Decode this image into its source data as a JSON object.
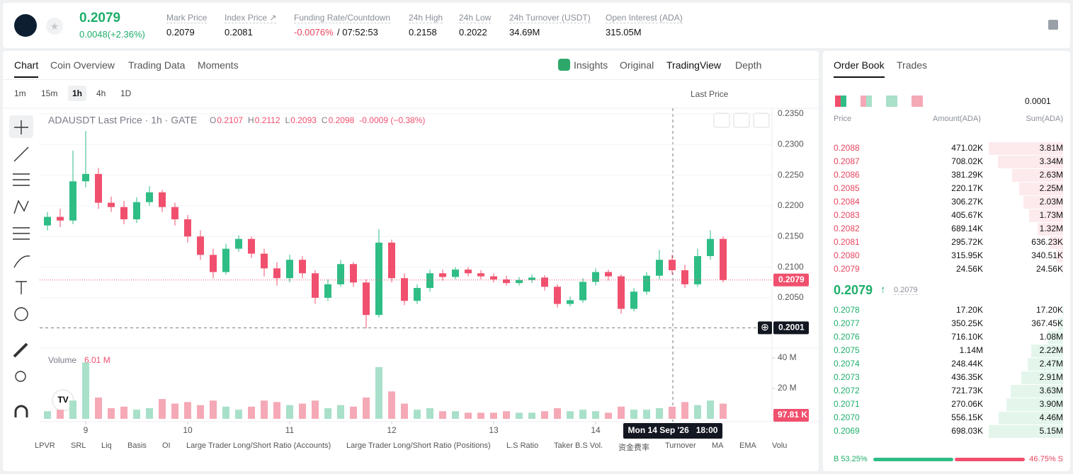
{
  "header": {
    "price": "0.2079",
    "change": "0.0048(+2.36%)",
    "stats": [
      {
        "label": "Mark Price",
        "value": "0.2079"
      },
      {
        "label": "Index Price ↗",
        "value": "0.2081"
      },
      {
        "label": "Funding Rate/Countdown",
        "value": "-0.0076%",
        "value2": "/ 07:52:53"
      },
      {
        "label": "24h High",
        "value": "0.2158"
      },
      {
        "label": "24h Low",
        "value": "0.2022"
      },
      {
        "label": "24h Turnover (USDT)",
        "value": "34.69M"
      },
      {
        "label": "Open Interest (ADA)",
        "value": "315.05M"
      }
    ]
  },
  "tabs": {
    "left": [
      "Chart",
      "Coin Overview",
      "Trading Data",
      "Moments"
    ],
    "right": [
      "Insights",
      "Original",
      "TradingView",
      "Depth"
    ]
  },
  "toolbar": {
    "intervals": [
      "1m",
      "15m",
      "1h",
      "4h",
      "1D"
    ],
    "price_type": "Last Price"
  },
  "chart": {
    "type": "candlestick",
    "legend": {
      "title": "ADAUSDT Last Price · 1h · GATE",
      "ohlc": [
        {
          "key": "O",
          "value": "0.2107"
        },
        {
          "key": "H",
          "value": "0.2112"
        },
        {
          "key": "L",
          "value": "0.2093"
        },
        {
          "key": "C",
          "value": "0.2098"
        }
      ],
      "change": "-0.0009 (−0.38%)"
    },
    "colors": {
      "up": "#2ebd85",
      "down": "#f0506e",
      "vol_up": "#a8e0c9",
      "vol_down": "#f5a9b6"
    },
    "ylim": [
      0.1968,
      0.2358
    ],
    "yticks": [
      {
        "value": 0.205,
        "label": "0.2050"
      },
      {
        "value": 0.21,
        "label": "0.2100"
      },
      {
        "value": 0.215,
        "label": "0.2150"
      },
      {
        "value": 0.22,
        "label": "0.2200"
      },
      {
        "value": 0.225,
        "label": "0.2250"
      },
      {
        "value": 0.23,
        "label": "0.2300"
      },
      {
        "value": 0.235,
        "label": "0.2350"
      }
    ],
    "last_price": {
      "value": 0.2079,
      "label": "0.2079"
    },
    "cross_price": {
      "value": 0.2001,
      "label": "0.2001"
    },
    "xticks": [
      {
        "value": 3,
        "label": "9"
      },
      {
        "value": 11,
        "label": "10"
      },
      {
        "value": 19,
        "label": "11"
      },
      {
        "value": 27,
        "label": "12"
      },
      {
        "value": 35,
        "label": "13"
      },
      {
        "value": 43,
        "label": "14"
      }
    ],
    "crosshair_label": "Mon 14 Sep '26   18:00",
    "volume": {
      "title": "Volume",
      "current": "6.01 M",
      "current_box": "97.81 K",
      "ylim": [
        0,
        46.5
      ],
      "yticks": [
        {
          "value": 20,
          "label": "20 M"
        },
        {
          "value": 40,
          "label": "40 M"
        }
      ]
    },
    "candles": [
      {
        "o": 0.2168,
        "c": 0.2182,
        "h": 0.219,
        "l": 0.216,
        "v": 5
      },
      {
        "o": 0.2182,
        "c": 0.2176,
        "h": 0.2195,
        "l": 0.2165,
        "v": 6
      },
      {
        "o": 0.2176,
        "c": 0.224,
        "h": 0.229,
        "l": 0.217,
        "v": 12
      },
      {
        "o": 0.224,
        "c": 0.2252,
        "h": 0.2322,
        "l": 0.223,
        "v": 37
      },
      {
        "o": 0.2252,
        "c": 0.2205,
        "h": 0.2262,
        "l": 0.2195,
        "v": 14
      },
      {
        "o": 0.2205,
        "c": 0.2198,
        "h": 0.2215,
        "l": 0.219,
        "v": 7
      },
      {
        "o": 0.2198,
        "c": 0.2178,
        "h": 0.2208,
        "l": 0.217,
        "v": 8
      },
      {
        "o": 0.2178,
        "c": 0.2206,
        "h": 0.2214,
        "l": 0.2172,
        "v": 6
      },
      {
        "o": 0.2206,
        "c": 0.2222,
        "h": 0.2232,
        "l": 0.22,
        "v": 7
      },
      {
        "o": 0.2222,
        "c": 0.2198,
        "h": 0.2226,
        "l": 0.219,
        "v": 13
      },
      {
        "o": 0.2198,
        "c": 0.2178,
        "h": 0.2205,
        "l": 0.2168,
        "v": 10
      },
      {
        "o": 0.2178,
        "c": 0.215,
        "h": 0.2185,
        "l": 0.214,
        "v": 11
      },
      {
        "o": 0.215,
        "c": 0.212,
        "h": 0.216,
        "l": 0.2112,
        "v": 9
      },
      {
        "o": 0.212,
        "c": 0.2092,
        "h": 0.213,
        "l": 0.2082,
        "v": 12
      },
      {
        "o": 0.2092,
        "c": 0.213,
        "h": 0.2138,
        "l": 0.2088,
        "v": 8
      },
      {
        "o": 0.213,
        "c": 0.2146,
        "h": 0.2152,
        "l": 0.2125,
        "v": 6
      },
      {
        "o": 0.2146,
        "c": 0.2122,
        "h": 0.215,
        "l": 0.2115,
        "v": 8
      },
      {
        "o": 0.2122,
        "c": 0.2098,
        "h": 0.213,
        "l": 0.2085,
        "v": 12
      },
      {
        "o": 0.2098,
        "c": 0.2082,
        "h": 0.2108,
        "l": 0.207,
        "v": 11
      },
      {
        "o": 0.2082,
        "c": 0.2112,
        "h": 0.212,
        "l": 0.2075,
        "v": 9
      },
      {
        "o": 0.2112,
        "c": 0.209,
        "h": 0.2118,
        "l": 0.2082,
        "v": 10
      },
      {
        "o": 0.209,
        "c": 0.205,
        "h": 0.2095,
        "l": 0.204,
        "v": 12
      },
      {
        "o": 0.205,
        "c": 0.2072,
        "h": 0.208,
        "l": 0.2045,
        "v": 7
      },
      {
        "o": 0.2072,
        "c": 0.2105,
        "h": 0.2112,
        "l": 0.2068,
        "v": 9
      },
      {
        "o": 0.2105,
        "c": 0.2075,
        "h": 0.2108,
        "l": 0.2068,
        "v": 8
      },
      {
        "o": 0.2075,
        "c": 0.2022,
        "h": 0.208,
        "l": 0.2,
        "v": 14
      },
      {
        "o": 0.2022,
        "c": 0.214,
        "h": 0.2162,
        "l": 0.2018,
        "v": 34
      },
      {
        "o": 0.214,
        "c": 0.2082,
        "h": 0.2145,
        "l": 0.2075,
        "v": 18
      },
      {
        "o": 0.2082,
        "c": 0.2045,
        "h": 0.209,
        "l": 0.2038,
        "v": 10
      },
      {
        "o": 0.2045,
        "c": 0.2066,
        "h": 0.2072,
        "l": 0.204,
        "v": 6
      },
      {
        "o": 0.2066,
        "c": 0.209,
        "h": 0.2096,
        "l": 0.206,
        "v": 7
      },
      {
        "o": 0.209,
        "c": 0.2084,
        "h": 0.2096,
        "l": 0.2078,
        "v": 5
      },
      {
        "o": 0.2084,
        "c": 0.2096,
        "h": 0.21,
        "l": 0.208,
        "v": 5
      },
      {
        "o": 0.2096,
        "c": 0.209,
        "h": 0.21,
        "l": 0.2085,
        "v": 4
      },
      {
        "o": 0.209,
        "c": 0.2085,
        "h": 0.2095,
        "l": 0.208,
        "v": 4
      },
      {
        "o": 0.2085,
        "c": 0.208,
        "h": 0.209,
        "l": 0.2075,
        "v": 4
      },
      {
        "o": 0.208,
        "c": 0.2074,
        "h": 0.2086,
        "l": 0.207,
        "v": 5
      },
      {
        "o": 0.2074,
        "c": 0.2079,
        "h": 0.2084,
        "l": 0.207,
        "v": 4
      },
      {
        "o": 0.2079,
        "c": 0.2083,
        "h": 0.2088,
        "l": 0.2074,
        "v": 4
      },
      {
        "o": 0.2083,
        "c": 0.2068,
        "h": 0.2087,
        "l": 0.2062,
        "v": 5
      },
      {
        "o": 0.2068,
        "c": 0.204,
        "h": 0.2072,
        "l": 0.2034,
        "v": 7
      },
      {
        "o": 0.204,
        "c": 0.2046,
        "h": 0.2052,
        "l": 0.2036,
        "v": 5
      },
      {
        "o": 0.2046,
        "c": 0.2076,
        "h": 0.2082,
        "l": 0.2042,
        "v": 6
      },
      {
        "o": 0.2076,
        "c": 0.2092,
        "h": 0.2098,
        "l": 0.207,
        "v": 5
      },
      {
        "o": 0.2092,
        "c": 0.2085,
        "h": 0.2096,
        "l": 0.2078,
        "v": 4
      },
      {
        "o": 0.2085,
        "c": 0.2032,
        "h": 0.2088,
        "l": 0.2024,
        "v": 8
      },
      {
        "o": 0.2032,
        "c": 0.206,
        "h": 0.2066,
        "l": 0.2028,
        "v": 6
      },
      {
        "o": 0.206,
        "c": 0.2086,
        "h": 0.2092,
        "l": 0.2055,
        "v": 6
      },
      {
        "o": 0.2086,
        "c": 0.2112,
        "h": 0.2128,
        "l": 0.208,
        "v": 7
      },
      {
        "o": 0.2112,
        "c": 0.2095,
        "h": 0.212,
        "l": 0.2088,
        "v": 8
      },
      {
        "o": 0.2095,
        "c": 0.2072,
        "h": 0.2104,
        "l": 0.2066,
        "v": 11
      },
      {
        "o": 0.2072,
        "c": 0.2118,
        "h": 0.213,
        "l": 0.2068,
        "v": 9
      },
      {
        "o": 0.2118,
        "c": 0.2146,
        "h": 0.216,
        "l": 0.2112,
        "v": 12
      },
      {
        "o": 0.2146,
        "c": 0.2079,
        "h": 0.215,
        "l": 0.2075,
        "v": 10
      }
    ]
  },
  "indicators": [
    "LPVR",
    "SRL",
    "Liq",
    "Basis",
    "OI",
    "Large Trader Long/Short Ratio (Accounts)",
    "Large Trader Long/Short Ratio (Positions)",
    "L.S Ratio",
    "Taker B.S Vol.",
    "资金费率",
    "Turnover",
    "MA",
    "EMA",
    "Volu"
  ],
  "order_book": {
    "tabs": [
      "Order Book",
      "Trades"
    ],
    "precision": "0.0001",
    "columns": [
      "Price",
      "Amount(ADA)",
      "Sum(ADA)"
    ],
    "asks": [
      {
        "price": "0.2088",
        "amount": "471.02K",
        "sum": 3810000,
        "sum_label": "3.81M"
      },
      {
        "price": "0.2087",
        "amount": "708.02K",
        "sum": 3340000,
        "sum_label": "3.34M"
      },
      {
        "price": "0.2086",
        "amount": "381.29K",
        "sum": 2630000,
        "sum_label": "2.63M"
      },
      {
        "price": "0.2085",
        "amount": "220.17K",
        "sum": 2250000,
        "sum_label": "2.25M"
      },
      {
        "price": "0.2084",
        "amount": "306.27K",
        "sum": 2030000,
        "sum_label": "2.03M"
      },
      {
        "price": "0.2083",
        "amount": "405.67K",
        "sum": 1730000,
        "sum_label": "1.73M"
      },
      {
        "price": "0.2082",
        "amount": "689.14K",
        "sum": 1320000,
        "sum_label": "1.32M"
      },
      {
        "price": "0.2081",
        "amount": "295.72K",
        "sum": 636230,
        "sum_label": "636.23K"
      },
      {
        "price": "0.2080",
        "amount": "315.95K",
        "sum": 340510,
        "sum_label": "340.51K"
      },
      {
        "price": "0.2079",
        "amount": "24.56K",
        "sum": 24560,
        "sum_label": "24.56K"
      }
    ],
    "mid": {
      "price": "0.2079",
      "mark": "0.2079"
    },
    "bids": [
      {
        "price": "0.2078",
        "amount": "17.20K",
        "sum": 17200,
        "sum_label": "17.20K"
      },
      {
        "price": "0.2077",
        "amount": "350.25K",
        "sum": 367450,
        "sum_label": "367.45K"
      },
      {
        "price": "0.2076",
        "amount": "716.10K",
        "sum": 1080000,
        "sum_label": "1.08M"
      },
      {
        "price": "0.2075",
        "amount": "1.14M",
        "sum": 2220000,
        "sum_label": "2.22M"
      },
      {
        "price": "0.2074",
        "amount": "248.44K",
        "sum": 2470000,
        "sum_label": "2.47M"
      },
      {
        "price": "0.2073",
        "amount": "436.35K",
        "sum": 2910000,
        "sum_label": "2.91M"
      },
      {
        "price": "0.2072",
        "amount": "721.73K",
        "sum": 3630000,
        "sum_label": "3.63M"
      },
      {
        "price": "0.2071",
        "amount": "270.06K",
        "sum": 3900000,
        "sum_label": "3.90M"
      },
      {
        "price": "0.2070",
        "amount": "556.15K",
        "sum": 4460000,
        "sum_label": "4.46M"
      },
      {
        "price": "0.2069",
        "amount": "698.03K",
        "sum": 5150000,
        "sum_label": "5.15M"
      }
    ],
    "ratio": {
      "buy": 53.25,
      "buy_label": "B 53.25%",
      "sell_label": "46.75% S"
    }
  }
}
